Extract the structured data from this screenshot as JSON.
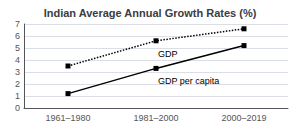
{
  "chart_data": {
    "type": "line",
    "title": "Indian Average Annual Growth Rates (%)",
    "categories": [
      "1961–1980",
      "1981–2000",
      "2000–2019"
    ],
    "series": [
      {
        "name": "GDP",
        "color": "#000000",
        "values": [
          3.5,
          5.6,
          6.6
        ],
        "marker": "square",
        "line_style": "dotted"
      },
      {
        "name": "GDP per capita",
        "color": "#000000",
        "values": [
          1.2,
          3.3,
          5.2
        ],
        "marker": "square",
        "line_style": "solid"
      }
    ],
    "ylim": [
      0,
      7
    ],
    "yticks": [
      0,
      1,
      2,
      3,
      4,
      5,
      6,
      7
    ],
    "grid": true
  }
}
